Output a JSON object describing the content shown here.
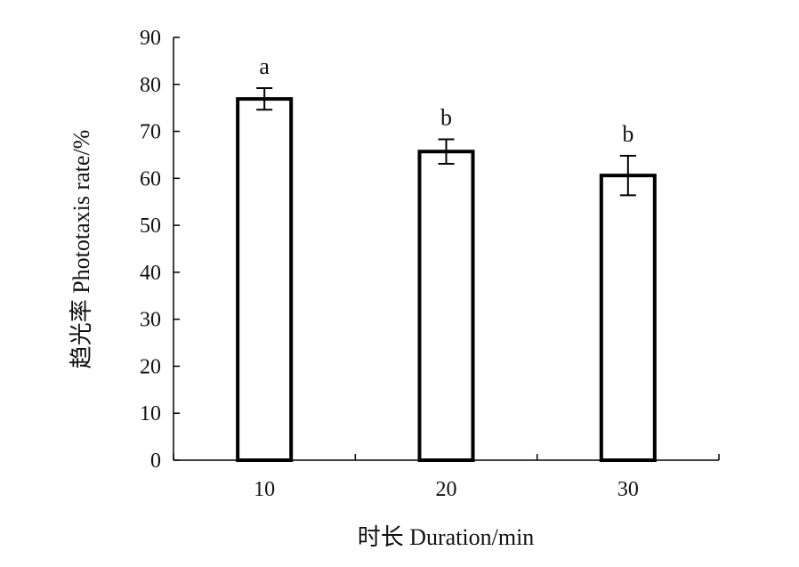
{
  "chart_data": {
    "type": "bar",
    "title": "",
    "xlabel": "时长 Duration/min",
    "ylabel": "趋光率 Phototaxis rate/%",
    "categories": [
      "10",
      "20",
      "30"
    ],
    "values": [
      76.9,
      65.7,
      60.6
    ],
    "errors": [
      2.3,
      2.6,
      4.2
    ],
    "significance": [
      "a",
      "b",
      "b"
    ],
    "ylim": [
      0,
      90
    ],
    "yticks": [
      0,
      10,
      20,
      30,
      40,
      50,
      60,
      70,
      80,
      90
    ],
    "grid": false,
    "bar_fill": "#ffffff",
    "bar_stroke": "#000000"
  }
}
